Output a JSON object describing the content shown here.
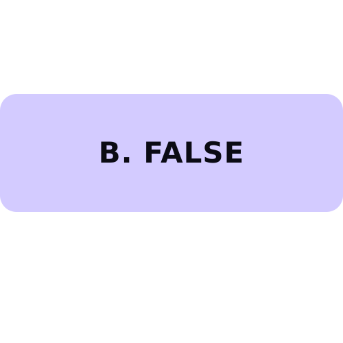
{
  "option": {
    "label": "B. FALSE",
    "background_color": "#d3cbff",
    "text_color": "#0b0b14"
  }
}
